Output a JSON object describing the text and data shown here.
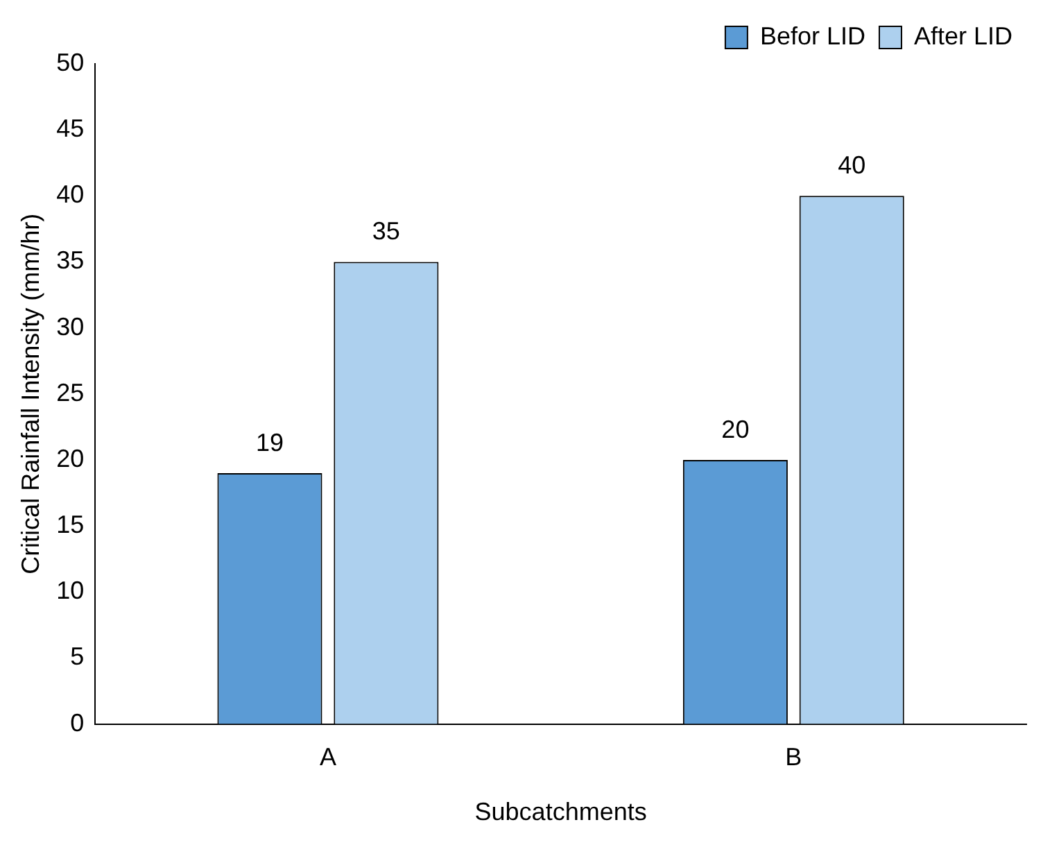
{
  "chart_data": {
    "type": "bar",
    "xlabel": "Subcatchments",
    "ylabel": "Critical Rainfall Intensity (mm/hr)",
    "categories": [
      "A",
      "B"
    ],
    "series": [
      {
        "name": "Befor LID",
        "color": "#5b9bd5",
        "values": [
          19,
          20
        ]
      },
      {
        "name": "After LID",
        "color": "#add0ee",
        "values": [
          35,
          40
        ]
      }
    ],
    "ylim": [
      0,
      50
    ],
    "yticks": [
      0,
      5,
      10,
      15,
      20,
      25,
      30,
      35,
      40,
      45,
      50
    ],
    "grid": false,
    "legend": "top right",
    "data_labels": true
  }
}
